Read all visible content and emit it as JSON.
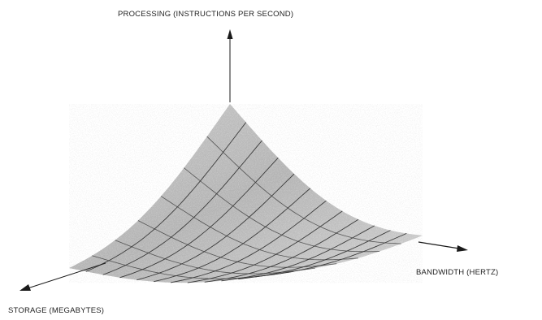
{
  "diagram": {
    "axes": {
      "vertical": "PROCESSING (INSTRUCTIONS PER SECOND)",
      "right": "BANDWIDTH (HERTZ)",
      "left": "STORAGE (MEGABYTES)"
    },
    "surface_fill_color": "#bdbdbd",
    "grid_color": "#3a3a3a",
    "axis_color": "#1a1a1a"
  }
}
